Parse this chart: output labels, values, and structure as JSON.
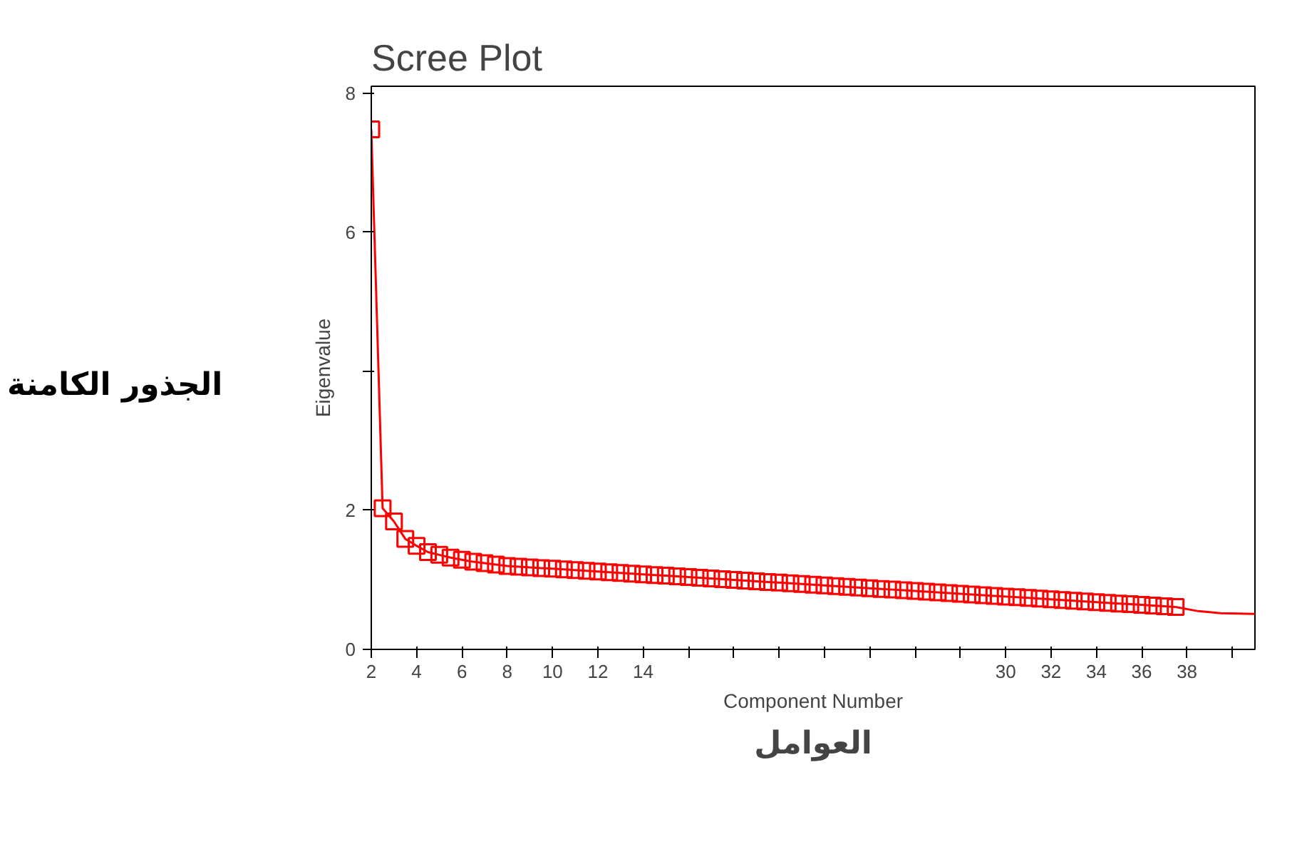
{
  "chart_data": {
    "type": "line",
    "title": "Scree Plot",
    "xlabel": "Component Number",
    "ylabel": "Eigenvalue",
    "annotations": [
      "الجذور الكامنة",
      "العوامل"
    ],
    "xlim": [
      2,
      41
    ],
    "ylim": [
      0,
      8.1
    ],
    "xticks": [
      2,
      4,
      6,
      8,
      10,
      12,
      14,
      {
        "value": 16,
        "label": null
      },
      {
        "value": 18,
        "label": null
      },
      {
        "value": 20,
        "label": null
      },
      {
        "value": 22,
        "label": null
      },
      {
        "value": 24,
        "label": null
      },
      {
        "value": 26,
        "label": null
      },
      {
        "value": 28,
        "label": null
      },
      30,
      32,
      34,
      36,
      38,
      {
        "value": 40,
        "label": null
      }
    ],
    "yticks": [
      0,
      2,
      {
        "value": 4,
        "label": null
      },
      6,
      8
    ],
    "grid": false,
    "series": [
      {
        "color": "#ff0000",
        "marker": "square",
        "x": [
          2,
          2.5,
          3,
          3.5,
          4,
          4.5,
          5,
          5.5,
          6,
          6.5,
          7,
          7.5,
          8,
          8.5,
          9,
          9.5,
          10,
          10.5,
          11,
          11.5,
          12,
          12.5,
          13,
          13.5,
          14,
          14.5,
          15,
          15.5,
          16,
          16.5,
          17,
          17.5,
          18,
          18.5,
          19,
          19.5,
          20,
          20.5,
          21,
          21.5,
          22,
          22.5,
          23,
          23.5,
          24,
          24.5,
          25,
          25.5,
          26,
          26.5,
          27,
          27.5,
          28,
          28.5,
          29,
          29.5,
          30,
          30.5,
          31,
          31.5,
          32,
          32.5,
          33,
          33.5,
          34,
          34.5,
          35,
          35.5,
          36,
          36.5,
          37,
          37.5
        ],
        "values": [
          7.48,
          2.03,
          1.84,
          1.59,
          1.49,
          1.4,
          1.36,
          1.32,
          1.29,
          1.26,
          1.24,
          1.22,
          1.2,
          1.19,
          1.18,
          1.17,
          1.16,
          1.15,
          1.14,
          1.13,
          1.12,
          1.11,
          1.1,
          1.09,
          1.08,
          1.07,
          1.06,
          1.05,
          1.04,
          1.03,
          1.02,
          1.01,
          1.0,
          0.99,
          0.98,
          0.97,
          0.96,
          0.95,
          0.94,
          0.93,
          0.92,
          0.91,
          0.9,
          0.89,
          0.88,
          0.87,
          0.86,
          0.85,
          0.84,
          0.83,
          0.82,
          0.81,
          0.8,
          0.79,
          0.78,
          0.77,
          0.76,
          0.75,
          0.74,
          0.73,
          0.72,
          0.71,
          0.7,
          0.69,
          0.68,
          0.67,
          0.66,
          0.65,
          0.64,
          0.63,
          0.62,
          0.61
        ]
      },
      {
        "color": "#ff0000",
        "marker": "none",
        "x": [
          37.5,
          38.5,
          39.5,
          41
        ],
        "values": [
          0.61,
          0.55,
          0.52,
          0.51
        ]
      }
    ]
  }
}
